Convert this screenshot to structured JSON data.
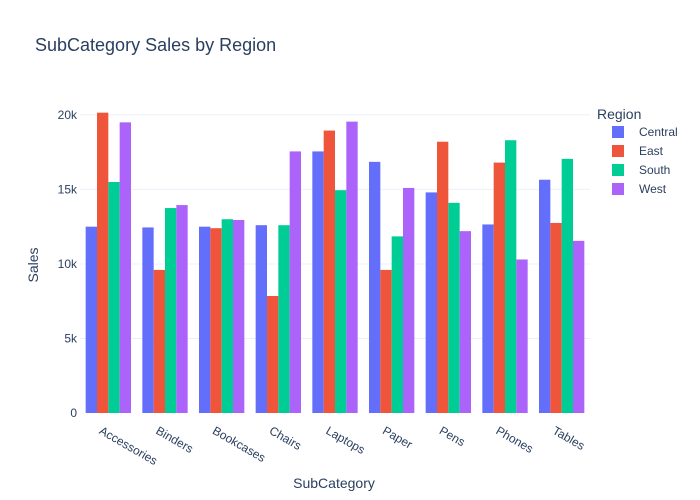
{
  "chart_data": {
    "type": "bar",
    "title": "SubCategory Sales by Region",
    "xlabel": "SubCategory",
    "ylabel": "Sales",
    "ylim": [
      0,
      21000
    ],
    "yticks": [
      0,
      5000,
      10000,
      15000,
      20000
    ],
    "ytick_labels": [
      "0",
      "5k",
      "10k",
      "15k",
      "20k"
    ],
    "grid": true,
    "legend_title": "Region",
    "legend_position": "top-right",
    "categories": [
      "Accessories",
      "Binders",
      "Bookcases",
      "Chairs",
      "Laptops",
      "Paper",
      "Pens",
      "Phones",
      "Tables"
    ],
    "series": [
      {
        "name": "Central",
        "color": "#636efa",
        "values": [
          12500,
          12450,
          12500,
          12600,
          17550,
          16850,
          14800,
          12650,
          15650
        ]
      },
      {
        "name": "East",
        "color": "#ef553b",
        "values": [
          20150,
          9600,
          12400,
          7850,
          18950,
          9600,
          18200,
          16800,
          12750
        ]
      },
      {
        "name": "South",
        "color": "#00cc96",
        "values": [
          15500,
          13750,
          13000,
          12600,
          14950,
          11850,
          14100,
          18300,
          17050
        ]
      },
      {
        "name": "West",
        "color": "#ab63fa",
        "values": [
          19500,
          13950,
          12950,
          17550,
          19550,
          15100,
          12200,
          10300,
          11550
        ]
      }
    ]
  }
}
